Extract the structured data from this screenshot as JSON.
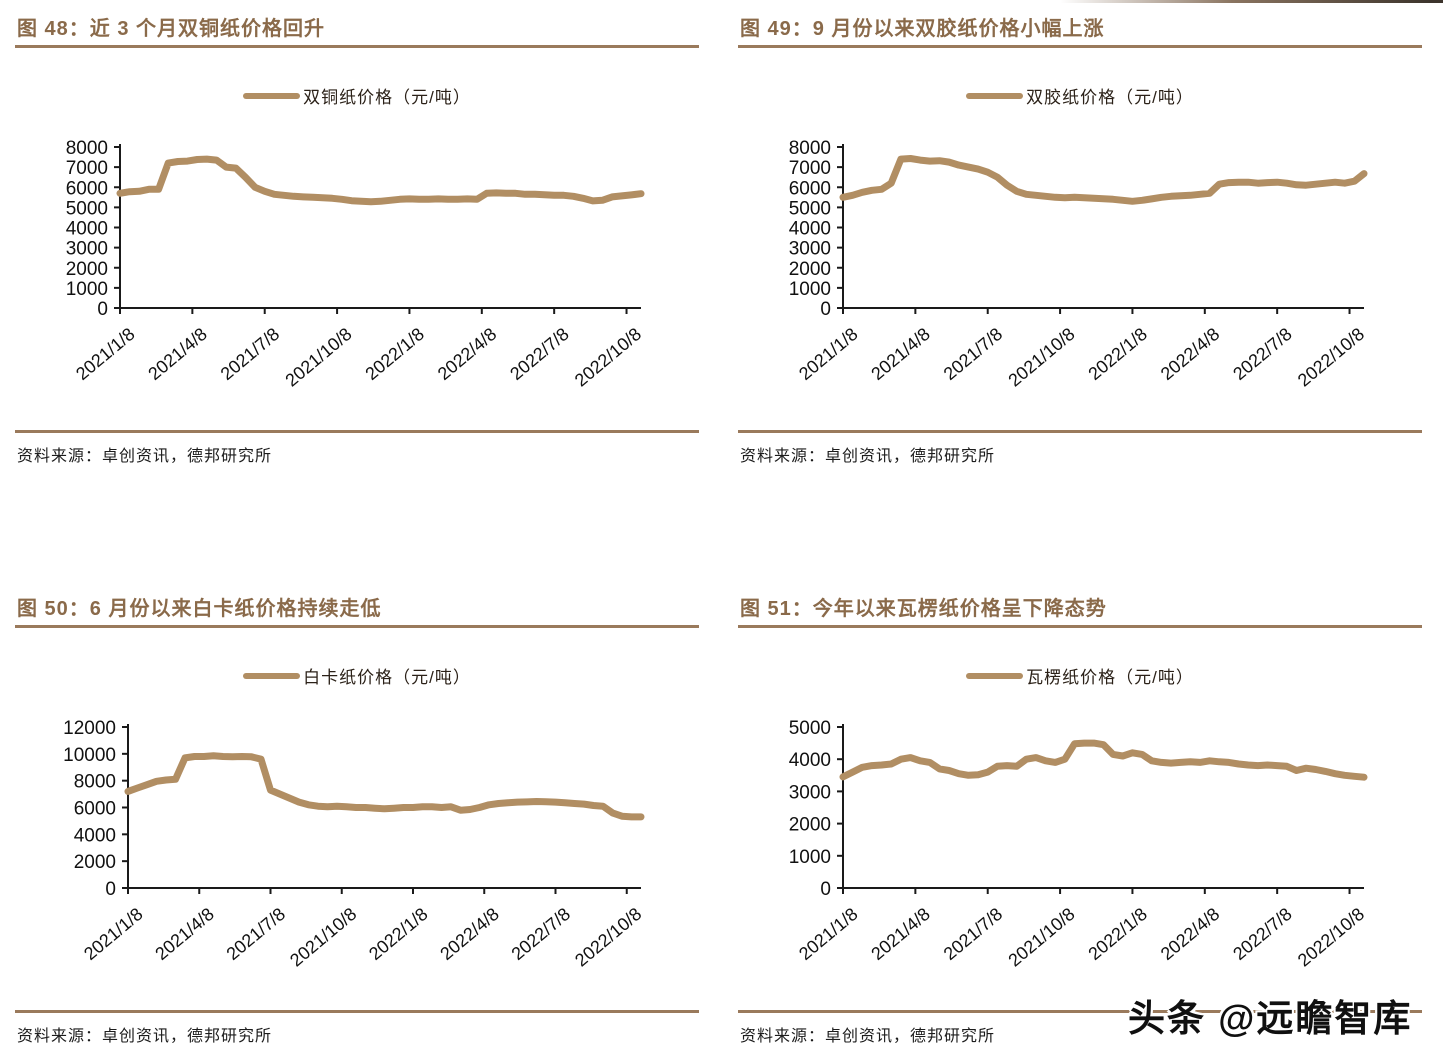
{
  "page": {
    "watermark": "头条 @远瞻智库",
    "accent_title_color": "#8a6a4a",
    "rule_color": "#9a7a5c",
    "line_color": "#b18e63",
    "axis_color": "#1a1a1a"
  },
  "figures": [
    {
      "title": "图 48：近 3 个月双铜纸价格回升",
      "legend": "双铜纸价格（元/吨）",
      "source": "资料来源：卓创资讯，德邦研究所"
    },
    {
      "title": "图 49：9 月份以来双胶纸价格小幅上涨",
      "legend": "双胶纸价格（元/吨）",
      "source": "资料来源：卓创资讯，德邦研究所"
    },
    {
      "title": "图 50：6 月份以来白卡纸价格持续走低",
      "legend": "白卡纸价格（元/吨）",
      "source": "资料来源：卓创资讯，德邦研究所"
    },
    {
      "title": "图 51：今年以来瓦楞纸价格呈下降态势",
      "legend": "瓦楞纸价格（元/吨）",
      "source": "资料来源：卓创资讯，德邦研究所"
    }
  ],
  "chart_data": [
    {
      "type": "line",
      "title": "图 48：近 3 个月双铜纸价格回升",
      "series_name": "双铜纸价格（元/吨）",
      "x_start": "2021/1/8",
      "x_range_months": 21.6,
      "x_tick_interval_months": 3,
      "x_tick_labels": [
        "2021/1/8",
        "2021/4/8",
        "2021/7/8",
        "2021/10/8",
        "2022/1/8",
        "2022/4/8",
        "2022/7/8",
        "2022/10/8"
      ],
      "ylim": [
        0,
        8000
      ],
      "ytick_step": 1000,
      "grid": false,
      "legend_position": "top-center",
      "values": [
        5700,
        5780,
        5800,
        5900,
        5900,
        7200,
        7280,
        7300,
        7380,
        7400,
        7350,
        7000,
        6950,
        6500,
        6000,
        5800,
        5650,
        5600,
        5550,
        5520,
        5500,
        5480,
        5450,
        5400,
        5330,
        5300,
        5280,
        5300,
        5350,
        5400,
        5420,
        5400,
        5400,
        5420,
        5400,
        5400,
        5420,
        5400,
        5700,
        5720,
        5700,
        5700,
        5650,
        5650,
        5630,
        5600,
        5600,
        5550,
        5450,
        5320,
        5350,
        5520,
        5570,
        5620,
        5680
      ]
    },
    {
      "type": "line",
      "title": "图 49：9 月份以来双胶纸价格小幅上涨",
      "series_name": "双胶纸价格（元/吨）",
      "x_start": "2021/1/8",
      "x_range_months": 21.6,
      "x_tick_interval_months": 3,
      "x_tick_labels": [
        "2021/1/8",
        "2021/4/8",
        "2021/7/8",
        "2021/10/8",
        "2022/1/8",
        "2022/4/8",
        "2022/7/8",
        "2022/10/8"
      ],
      "ylim": [
        0,
        8000
      ],
      "ytick_step": 1000,
      "grid": false,
      "legend_position": "top-center",
      "values": [
        5500,
        5600,
        5750,
        5850,
        5900,
        6200,
        7400,
        7430,
        7350,
        7300,
        7320,
        7250,
        7100,
        7000,
        6900,
        6750,
        6500,
        6100,
        5800,
        5650,
        5600,
        5550,
        5500,
        5480,
        5500,
        5480,
        5450,
        5430,
        5400,
        5350,
        5300,
        5350,
        5420,
        5500,
        5550,
        5580,
        5600,
        5650,
        5700,
        6150,
        6230,
        6250,
        6250,
        6200,
        6230,
        6250,
        6200,
        6120,
        6100,
        6150,
        6200,
        6250,
        6200,
        6300,
        6680
      ]
    },
    {
      "type": "line",
      "title": "图 50：6 月份以来白卡纸价格持续走低",
      "series_name": "白卡纸价格（元/吨）",
      "x_start": "2021/1/8",
      "x_range_months": 21.6,
      "x_tick_interval_months": 3,
      "x_tick_labels": [
        "2021/1/8",
        "2021/4/8",
        "2021/7/8",
        "2021/10/8",
        "2022/1/8",
        "2022/4/8",
        "2022/7/8",
        "2022/10/8"
      ],
      "ylim": [
        0,
        12000
      ],
      "ytick_step": 2000,
      "grid": false,
      "legend_position": "top-center",
      "values": [
        7200,
        7450,
        7700,
        7950,
        8050,
        8100,
        9700,
        9800,
        9800,
        9850,
        9800,
        9780,
        9800,
        9780,
        9600,
        7300,
        7000,
        6700,
        6400,
        6200,
        6100,
        6050,
        6100,
        6050,
        6000,
        6000,
        5950,
        5900,
        5950,
        6000,
        6000,
        6050,
        6050,
        6000,
        6050,
        5800,
        5850,
        6000,
        6200,
        6300,
        6350,
        6400,
        6420,
        6450,
        6430,
        6400,
        6350,
        6300,
        6250,
        6150,
        6100,
        5600,
        5350,
        5300,
        5300
      ]
    },
    {
      "type": "line",
      "title": "图 51：今年以来瓦楞纸价格呈下降态势",
      "series_name": "瓦楞纸价格（元/吨）",
      "x_start": "2021/1/8",
      "x_range_months": 21.6,
      "x_tick_interval_months": 3,
      "x_tick_labels": [
        "2021/1/8",
        "2021/4/8",
        "2021/7/8",
        "2021/10/8",
        "2022/1/8",
        "2022/4/8",
        "2022/7/8",
        "2022/10/8"
      ],
      "ylim": [
        0,
        5000
      ],
      "ytick_step": 1000,
      "grid": false,
      "legend_position": "top-center",
      "values": [
        3450,
        3600,
        3750,
        3800,
        3820,
        3850,
        4000,
        4050,
        3950,
        3900,
        3700,
        3650,
        3550,
        3500,
        3520,
        3600,
        3780,
        3800,
        3780,
        4000,
        4050,
        3950,
        3900,
        4000,
        4480,
        4500,
        4500,
        4450,
        4150,
        4100,
        4200,
        4150,
        3950,
        3900,
        3880,
        3900,
        3920,
        3900,
        3950,
        3920,
        3900,
        3850,
        3820,
        3800,
        3820,
        3800,
        3780,
        3650,
        3720,
        3680,
        3620,
        3550,
        3500,
        3470,
        3440
      ]
    }
  ]
}
